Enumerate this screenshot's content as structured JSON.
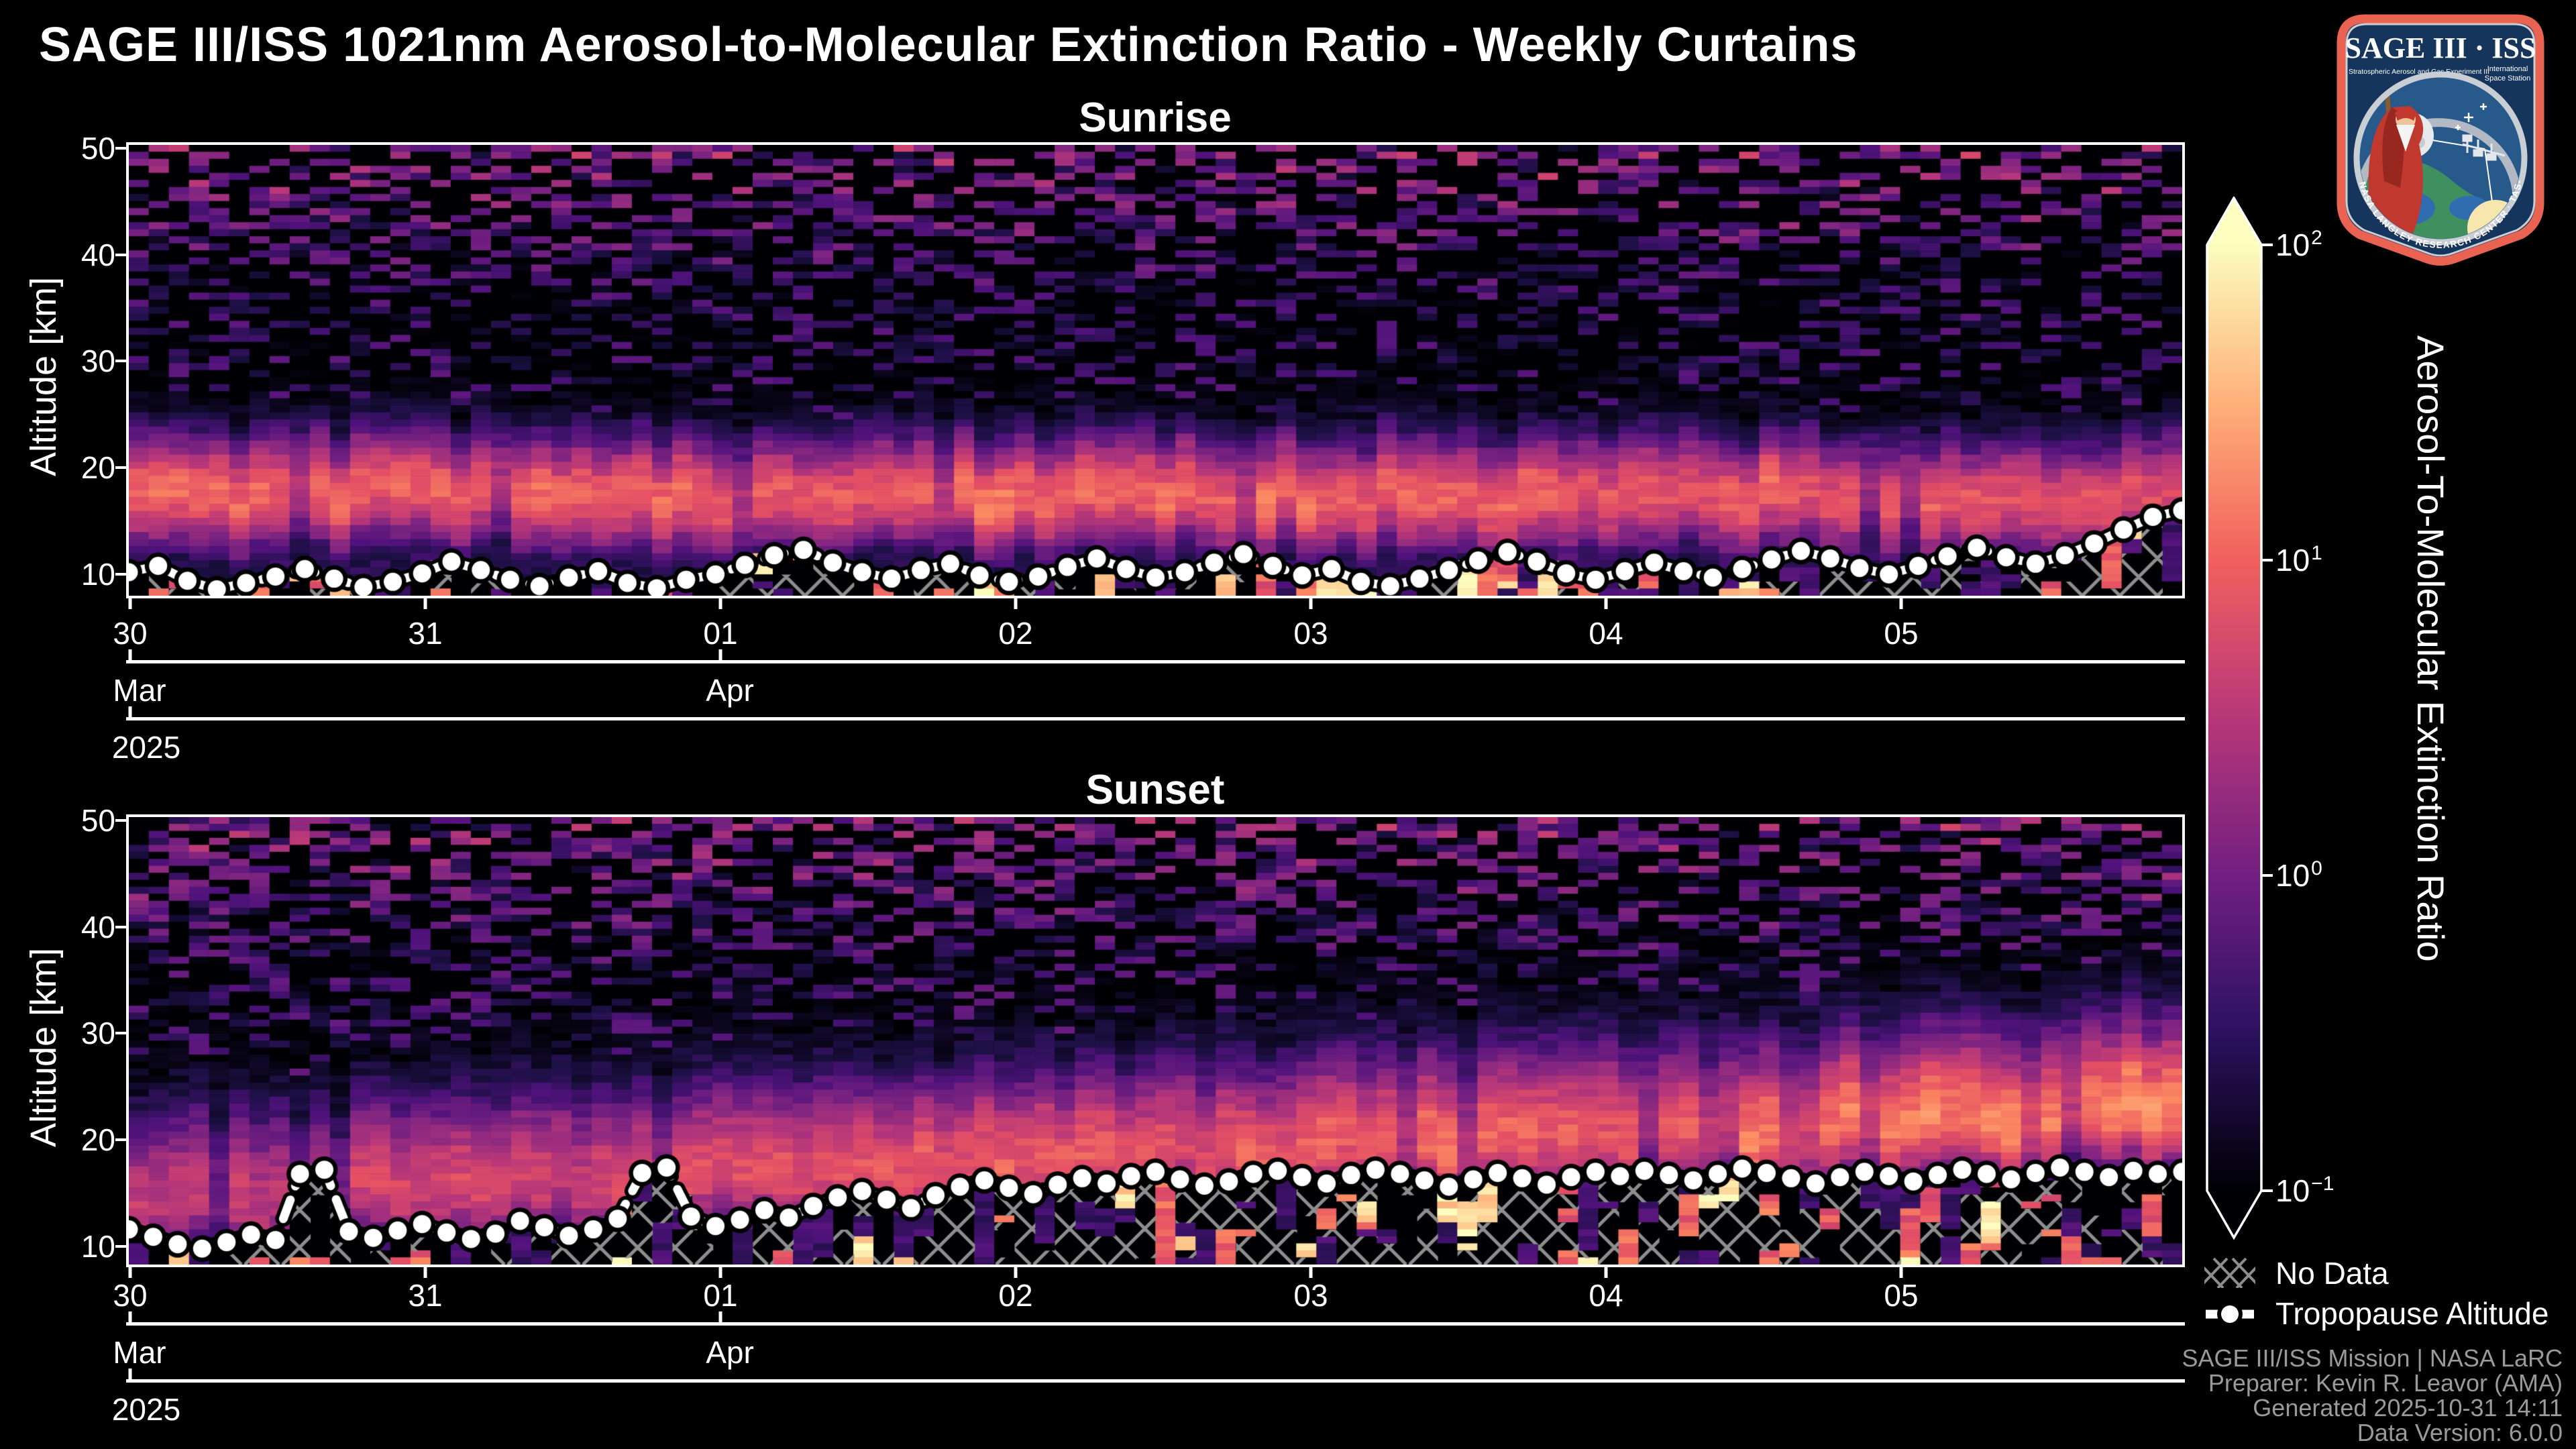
{
  "header": {
    "title": "SAGE III/ISS 1021nm Aerosol-to-Molecular Extinction Ratio - Weekly Curtains"
  },
  "logo": {
    "title_line": "SAGE III · ISS",
    "subtitle": "Stratospheric Aerosol and Gas Experiment III",
    "right_line1": "International",
    "right_line2": "Space Station",
    "ring_text": "BALL · NASA LANGLEY RESEARCH CENTER · TAS-I · ESA"
  },
  "colorbar": {
    "label": "Aerosol-To-Molecular Extinction Ratio",
    "ticks": [
      {
        "mantissa": "10",
        "exponent": "2",
        "value": 100
      },
      {
        "mantissa": "10",
        "exponent": "1",
        "value": 10
      },
      {
        "mantissa": "10",
        "exponent": "0",
        "value": 1
      },
      {
        "mantissa": "10",
        "exponent": "−1",
        "value": 0.1
      }
    ],
    "scale": "log",
    "range": [
      0.1,
      100
    ],
    "colormap": "magma",
    "extend": "both"
  },
  "legend": [
    {
      "label": "No Data",
      "type": "no-data-hatch"
    },
    {
      "label": "Tropopause Altitude",
      "type": "tropopause-marker-line"
    }
  ],
  "credits": [
    "SAGE III/ISS Mission | NASA LaRC",
    "Preparer: Kevin R. Leavor (AMA)",
    "Generated 2025-10-31 14:11",
    "Data Version: 6.0.0"
  ],
  "chart_data": {
    "type": "heatmap",
    "title": "SAGE III/ISS 1021nm Aerosol-to-Molecular Extinction Ratio - Weekly Curtains",
    "x": {
      "start_date": "2025-03-30",
      "end_date": "2025-04-06",
      "tick_labels": [
        "30",
        "31",
        "01",
        "02",
        "03",
        "04",
        "05"
      ],
      "month_ticks": [
        {
          "label": "Mar",
          "day_index": 0
        },
        {
          "label": "Apr",
          "day_index": 2
        }
      ],
      "year_tick": {
        "label": "2025",
        "day_index": 0
      }
    },
    "y": {
      "label": "Altitude [km]",
      "ticks": [
        10,
        20,
        30,
        40,
        50
      ],
      "range_km": [
        8,
        50.3
      ]
    },
    "value": {
      "label": "Aerosol-To-Molecular Extinction Ratio",
      "scale": "log10",
      "range": [
        0.1,
        100
      ],
      "colormap": "magma"
    },
    "panels": [
      {
        "id": "sunrise",
        "title": "Sunrise",
        "summary": "Bright aerosol band near 14-22 km (extinction ratio ~5-15) across the whole week, purple haze to ~26 km, sparse speckle above 30 km, tropopause ~9-12 km rising to ~16 km at the right edge, hatched no-data patches below the tropopause.",
        "tropopause_km": [
          10.2,
          10.8,
          9.4,
          8.6,
          9.2,
          9.8,
          10.5,
          9.6,
          8.8,
          9.3,
          10.1,
          11.2,
          10.4,
          9.5,
          8.9,
          9.7,
          10.3,
          9.2,
          8.7,
          9.5,
          10.0,
          10.9,
          11.8,
          12.3,
          11.1,
          10.2,
          9.6,
          10.4,
          11.0,
          9.9,
          9.3,
          9.8,
          10.7,
          11.5,
          10.5,
          9.7,
          10.2,
          11.1,
          11.9,
          10.8,
          9.9,
          10.5,
          9.3,
          8.9,
          9.6,
          10.4,
          11.3,
          12.1,
          11.2,
          10.1,
          9.5,
          10.3,
          11.1,
          10.3,
          9.7,
          10.5,
          11.4,
          12.2,
          11.5,
          10.6,
          10.0,
          10.8,
          11.7,
          12.5,
          11.6,
          11.0,
          11.8,
          12.9,
          14.2,
          15.4,
          16.0
        ],
        "field_model": {
          "seed": 1342,
          "cols": 102,
          "rows": 64,
          "band_center_km": [
            17.6,
            17.2
          ],
          "band_amp_log": [
            1.0,
            0.92
          ],
          "band_sigma_up": 4.2,
          "band_sigma_down": 4.0,
          "subband_floor_log": [
            -0.7,
            -0.3
          ],
          "speckle_prob": 0.45,
          "speckle_log_range": [
            -1.05,
            -0.12
          ],
          "top_boost_start_km": 35,
          "top_boost_log": 1.05,
          "below": {
            "nodata_p": 0.4,
            "black_p": 0.18,
            "purple_p": 0.2,
            "orange_p": 0.13,
            "yellow_p": 0.09,
            "switch_p": 0.34
          }
        }
      },
      {
        "id": "sunset",
        "title": "Sunset",
        "summary": "Aerosol band rising from ~14 km on the left to a bright orange layer near 20-28 km on the right (extinction ratio ~10-20), purple haze to ~33 km, tropopause ~10-12 km early rising to a steady ~16-17 km after Apr 01, extensive hatched no-data below the tropopause with scattered bright columns.",
        "tropopause_km": [
          11.6,
          10.9,
          10.2,
          9.8,
          10.4,
          11.1,
          10.6,
          16.8,
          17.2,
          11.4,
          10.8,
          11.5,
          12.1,
          11.3,
          10.7,
          11.2,
          12.4,
          11.8,
          11.0,
          11.6,
          12.6,
          16.9,
          17.4,
          12.8,
          11.9,
          12.5,
          13.4,
          12.7,
          13.8,
          14.6,
          15.2,
          14.4,
          13.6,
          14.8,
          15.6,
          16.2,
          15.5,
          14.9,
          15.8,
          16.4,
          15.9,
          16.6,
          17.0,
          16.3,
          15.7,
          16.1,
          16.8,
          17.1,
          16.5,
          15.9,
          16.7,
          17.2,
          16.8,
          16.2,
          15.6,
          16.3,
          16.9,
          16.4,
          15.8,
          16.5,
          17.0,
          16.6,
          17.1,
          16.7,
          16.2,
          16.8,
          17.3,
          16.9,
          16.4,
          15.9,
          16.5,
          17.0,
          16.6,
          16.1,
          16.7,
          17.2,
          16.8,
          16.3,
          16.9,
          17.4,
          17.0,
          16.5,
          17.1,
          16.8,
          17.0
        ],
        "field_model": {
          "seed": 977,
          "cols": 102,
          "rows": 64,
          "band_center_km": [
            14.0,
            22.8
          ],
          "band_amp_log": [
            0.55,
            1.22
          ],
          "band_sigma_up": 6.5,
          "band_sigma_down": 4.2,
          "subband_floor_log": [
            -0.55,
            -0.2
          ],
          "speckle_prob": 0.52,
          "speckle_log_range": [
            -1.0,
            -0.05
          ],
          "top_boost_start_km": 36,
          "top_boost_log": 0.9,
          "below": {
            "nodata_p": 0.52,
            "black_p": 0.13,
            "purple_p": 0.18,
            "orange_p": 0.1,
            "yellow_p": 0.07,
            "switch_p": 0.28
          }
        }
      }
    ]
  }
}
